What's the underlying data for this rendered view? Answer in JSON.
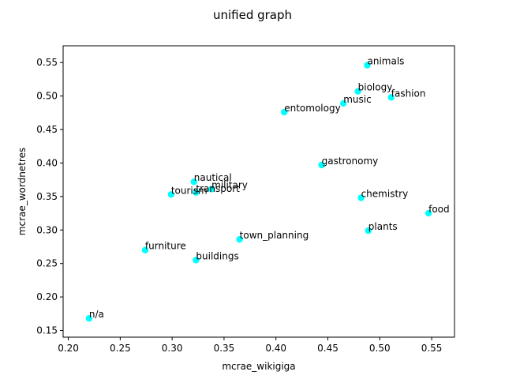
{
  "chart_data": {
    "type": "scatter",
    "title": "unified graph",
    "xlabel": "mcrae_wikigiga",
    "ylabel": "mcrae_wordnetres",
    "xlim": [
      0.195,
      0.572
    ],
    "ylim": [
      0.14,
      0.575
    ],
    "xticks": [
      0.2,
      0.25,
      0.3,
      0.35,
      0.4,
      0.45,
      0.5,
      0.55
    ],
    "yticks": [
      0.15,
      0.2,
      0.25,
      0.3,
      0.35,
      0.4,
      0.45,
      0.5,
      0.55
    ],
    "xtick_labels": [
      "0.20",
      "0.25",
      "0.30",
      "0.35",
      "0.40",
      "0.45",
      "0.50",
      "0.55"
    ],
    "ytick_labels": [
      "0.15",
      "0.20",
      "0.25",
      "0.30",
      "0.35",
      "0.40",
      "0.45",
      "0.50",
      "0.55"
    ],
    "grid": false,
    "marker_color": "#00ffff",
    "points": [
      {
        "label": "animals",
        "x": 0.488,
        "y": 0.546
      },
      {
        "label": "biology",
        "x": 0.479,
        "y": 0.507
      },
      {
        "label": "fashion",
        "x": 0.511,
        "y": 0.498
      },
      {
        "label": "music",
        "x": 0.465,
        "y": 0.489
      },
      {
        "label": "entomology",
        "x": 0.408,
        "y": 0.476
      },
      {
        "label": "gastronomy",
        "x": 0.444,
        "y": 0.397
      },
      {
        "label": "nautical",
        "x": 0.321,
        "y": 0.372
      },
      {
        "label": "military",
        "x": 0.338,
        "y": 0.361
      },
      {
        "label": "transport",
        "x": 0.323,
        "y": 0.356
      },
      {
        "label": "tourism",
        "x": 0.299,
        "y": 0.353
      },
      {
        "label": "chemistry",
        "x": 0.482,
        "y": 0.348
      },
      {
        "label": "food",
        "x": 0.547,
        "y": 0.325
      },
      {
        "label": "plants",
        "x": 0.489,
        "y": 0.299
      },
      {
        "label": "town_planning",
        "x": 0.365,
        "y": 0.286
      },
      {
        "label": "furniture",
        "x": 0.274,
        "y": 0.27
      },
      {
        "label": "buildings",
        "x": 0.323,
        "y": 0.255
      },
      {
        "label": "n/a",
        "x": 0.22,
        "y": 0.168
      }
    ]
  }
}
